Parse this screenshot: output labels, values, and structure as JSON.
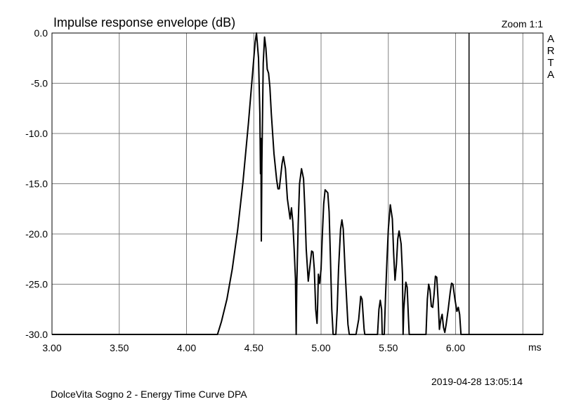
{
  "chart_data": {
    "type": "line",
    "title": "Impulse response envelope (dB)",
    "xlabel": "",
    "x_unit": "ms",
    "ylabel": "",
    "xlim": [
      3.0,
      6.65
    ],
    "ylim": [
      -30.0,
      0.0
    ],
    "xticks": [
      "3.00",
      "3.50",
      "4.00",
      "4.50",
      "5.00",
      "5.50",
      "6.00"
    ],
    "yticks": [
      "0.0",
      "-5.0",
      "-10.0",
      "-15.0",
      "-20.0",
      "-25.0",
      "-30.0"
    ],
    "grid": true,
    "legend": "none",
    "marker_x": 6.1,
    "series": [
      {
        "points": [
          [
            3.0,
            -30.0
          ],
          [
            4.23,
            -30.0
          ],
          [
            4.26,
            -28.7
          ],
          [
            4.3,
            -26.5
          ],
          [
            4.34,
            -23.5
          ],
          [
            4.38,
            -19.6
          ],
          [
            4.42,
            -14.8
          ],
          [
            4.46,
            -9.0
          ],
          [
            4.49,
            -4.2
          ],
          [
            4.51,
            -0.9
          ],
          [
            4.52,
            0.0
          ],
          [
            4.535,
            -2.5
          ],
          [
            4.545,
            -8.0
          ],
          [
            4.55,
            -14.0
          ],
          [
            4.553,
            -10.5
          ],
          [
            4.556,
            -20.7
          ],
          [
            4.56,
            -13.0
          ],
          [
            4.57,
            -3.0
          ],
          [
            4.58,
            -0.4
          ],
          [
            4.59,
            -1.5
          ],
          [
            4.6,
            -3.6
          ],
          [
            4.61,
            -4.0
          ],
          [
            4.62,
            -5.4
          ],
          [
            4.63,
            -8.0
          ],
          [
            4.65,
            -12.0
          ],
          [
            4.67,
            -14.6
          ],
          [
            4.68,
            -15.5
          ],
          [
            4.69,
            -15.5
          ],
          [
            4.71,
            -13.0
          ],
          [
            4.72,
            -12.3
          ],
          [
            4.735,
            -13.5
          ],
          [
            4.75,
            -16.5
          ],
          [
            4.77,
            -18.5
          ],
          [
            4.78,
            -17.4
          ],
          [
            4.79,
            -18.8
          ],
          [
            4.8,
            -21.5
          ],
          [
            4.81,
            -24.5
          ],
          [
            4.815,
            -30.0
          ],
          [
            4.82,
            -25.0
          ],
          [
            4.83,
            -19.0
          ],
          [
            4.84,
            -15.0
          ],
          [
            4.855,
            -13.5
          ],
          [
            4.87,
            -14.5
          ],
          [
            4.88,
            -17.5
          ],
          [
            4.89,
            -21.5
          ],
          [
            4.905,
            -24.7
          ],
          [
            4.915,
            -23.5
          ],
          [
            4.93,
            -21.7
          ],
          [
            4.94,
            -21.8
          ],
          [
            4.95,
            -23.5
          ],
          [
            4.96,
            -27.5
          ],
          [
            4.97,
            -28.9
          ],
          [
            4.975,
            -27.0
          ],
          [
            4.98,
            -24.0
          ],
          [
            4.99,
            -24.9
          ],
          [
            5.0,
            -23.5
          ],
          [
            5.01,
            -20.0
          ],
          [
            5.02,
            -17.0
          ],
          [
            5.03,
            -15.6
          ],
          [
            5.05,
            -15.9
          ],
          [
            5.06,
            -17.8
          ],
          [
            5.07,
            -22.5
          ],
          [
            5.08,
            -27.5
          ],
          [
            5.09,
            -30.0
          ],
          [
            5.11,
            -30.0
          ],
          [
            5.12,
            -27.5
          ],
          [
            5.13,
            -23.5
          ],
          [
            5.145,
            -19.5
          ],
          [
            5.155,
            -18.6
          ],
          [
            5.165,
            -19.5
          ],
          [
            5.18,
            -24.0
          ],
          [
            5.2,
            -29.0
          ],
          [
            5.21,
            -30.0
          ],
          [
            5.26,
            -30.0
          ],
          [
            5.28,
            -28.5
          ],
          [
            5.295,
            -26.2
          ],
          [
            5.305,
            -26.5
          ],
          [
            5.32,
            -29.5
          ],
          [
            5.325,
            -30.0
          ],
          [
            5.42,
            -30.0
          ],
          [
            5.43,
            -27.5
          ],
          [
            5.44,
            -26.6
          ],
          [
            5.45,
            -27.5
          ],
          [
            5.455,
            -30.0
          ],
          [
            5.47,
            -30.0
          ],
          [
            5.48,
            -26.0
          ],
          [
            5.49,
            -22.5
          ],
          [
            5.5,
            -19.5
          ],
          [
            5.515,
            -17.1
          ],
          [
            5.53,
            -18.5
          ],
          [
            5.54,
            -22.0
          ],
          [
            5.55,
            -24.6
          ],
          [
            5.56,
            -23.0
          ],
          [
            5.57,
            -20.5
          ],
          [
            5.58,
            -19.7
          ],
          [
            5.595,
            -21.0
          ],
          [
            5.605,
            -24.0
          ],
          [
            5.61,
            -30.0
          ],
          [
            5.615,
            -27.5
          ],
          [
            5.63,
            -24.8
          ],
          [
            5.64,
            -25.3
          ],
          [
            5.65,
            -28.5
          ],
          [
            5.655,
            -30.0
          ],
          [
            5.78,
            -30.0
          ],
          [
            5.79,
            -26.5
          ],
          [
            5.8,
            -25.0
          ],
          [
            5.81,
            -25.6
          ],
          [
            5.82,
            -27.2
          ],
          [
            5.83,
            -27.3
          ],
          [
            5.84,
            -26.0
          ],
          [
            5.85,
            -24.2
          ],
          [
            5.86,
            -24.3
          ],
          [
            5.87,
            -26.5
          ],
          [
            5.88,
            -29.5
          ],
          [
            5.89,
            -28.5
          ],
          [
            5.9,
            -28.0
          ],
          [
            5.91,
            -29.3
          ],
          [
            5.92,
            -29.8
          ],
          [
            5.93,
            -29.0
          ],
          [
            5.945,
            -27.5
          ],
          [
            5.96,
            -25.8
          ],
          [
            5.97,
            -24.9
          ],
          [
            5.98,
            -25.0
          ],
          [
            5.995,
            -26.5
          ],
          [
            6.01,
            -27.7
          ],
          [
            6.02,
            -27.3
          ],
          [
            6.03,
            -28.0
          ],
          [
            6.04,
            -30.0
          ],
          [
            6.65,
            -30.0
          ]
        ]
      }
    ]
  },
  "header": {
    "zoom": "Zoom 1:1",
    "logo": [
      "A",
      "R",
      "T",
      "A"
    ]
  },
  "footer": {
    "timestamp": "2019-04-28  13:05:14",
    "caption": "DolceVita Sogno 2 - Energy Time Curve      DPA"
  },
  "colors": {
    "grid": "#808080",
    "trace": "#000000",
    "background": "#ffffff"
  }
}
